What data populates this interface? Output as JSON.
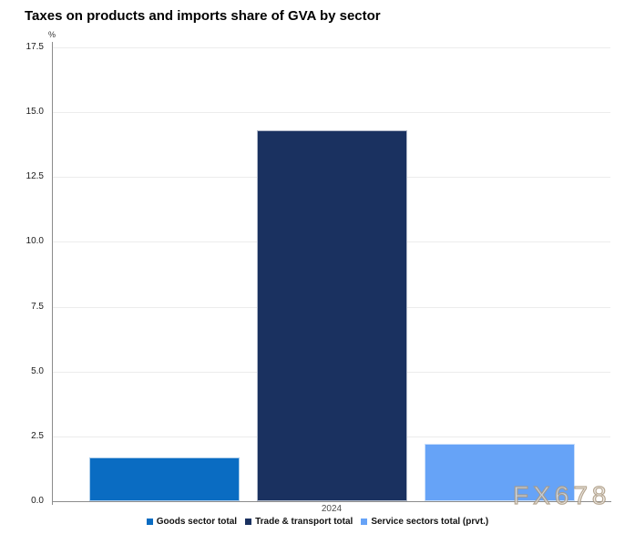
{
  "title": "Taxes on products and imports share of GVA by sector",
  "watermark": "FX678",
  "chart_data": {
    "type": "bar",
    "title": "Taxes on products and imports share of GVA by sector",
    "unit_label": "%",
    "categories": [
      "2024"
    ],
    "series": [
      {
        "name": "Goods sector total",
        "color": "#0a6cc2",
        "values": [
          1.7
        ]
      },
      {
        "name": "Trade & transport total",
        "color": "#1a3160",
        "values": [
          14.3
        ]
      },
      {
        "name": "Service sectors total (prvt.)",
        "color": "#66a3f7",
        "values": [
          2.2
        ]
      }
    ],
    "ylim": [
      0,
      17.5
    ],
    "ytick_step": 2.5,
    "grid": true,
    "legend_position": "bottom",
    "colors": {
      "axis": "#8c8c8c",
      "gridline": "#ececec",
      "tick_text": "#1a1a1a",
      "title_text": "#000000"
    }
  }
}
